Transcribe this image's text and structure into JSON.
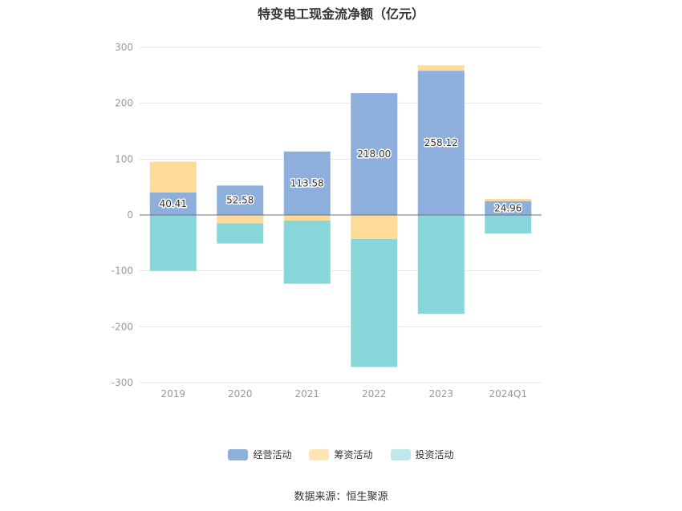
{
  "chart_data": {
    "type": "bar",
    "stacked": true,
    "title": "特变电工现金流净额（亿元）",
    "categories": [
      "2019",
      "2020",
      "2021",
      "2022",
      "2023",
      "2024Q1"
    ],
    "ylim": [
      -300,
      300
    ],
    "yticks": [
      "300",
      "200",
      "100",
      "0",
      "-100",
      "-200",
      "-300"
    ],
    "grid": true,
    "legend_position": "bottom",
    "series": [
      {
        "name": "经营活动",
        "color": "#8eaedb",
        "values": [
          40.41,
          52.58,
          113.58,
          218.0,
          258.12,
          24.96
        ],
        "labels": [
          "40.41",
          "52.58",
          "113.58",
          "218.00",
          "258.12",
          "24.96"
        ]
      },
      {
        "name": "筹资活动",
        "color": "#ffdb9a",
        "values": [
          55,
          -15,
          -10,
          -43,
          10,
          4
        ]
      },
      {
        "name": "投资活动",
        "color": "#87d7da",
        "values": [
          -100,
          -36,
          -113,
          -229,
          -177,
          -33
        ]
      }
    ]
  },
  "legend": {
    "items": [
      {
        "label": "经营活动",
        "color": "#8eaedb"
      },
      {
        "label": "筹资活动",
        "color": "#ffe5b5"
      },
      {
        "label": "投资活动",
        "color": "#bde9ea"
      }
    ]
  },
  "source": "数据来源：恒生聚源"
}
